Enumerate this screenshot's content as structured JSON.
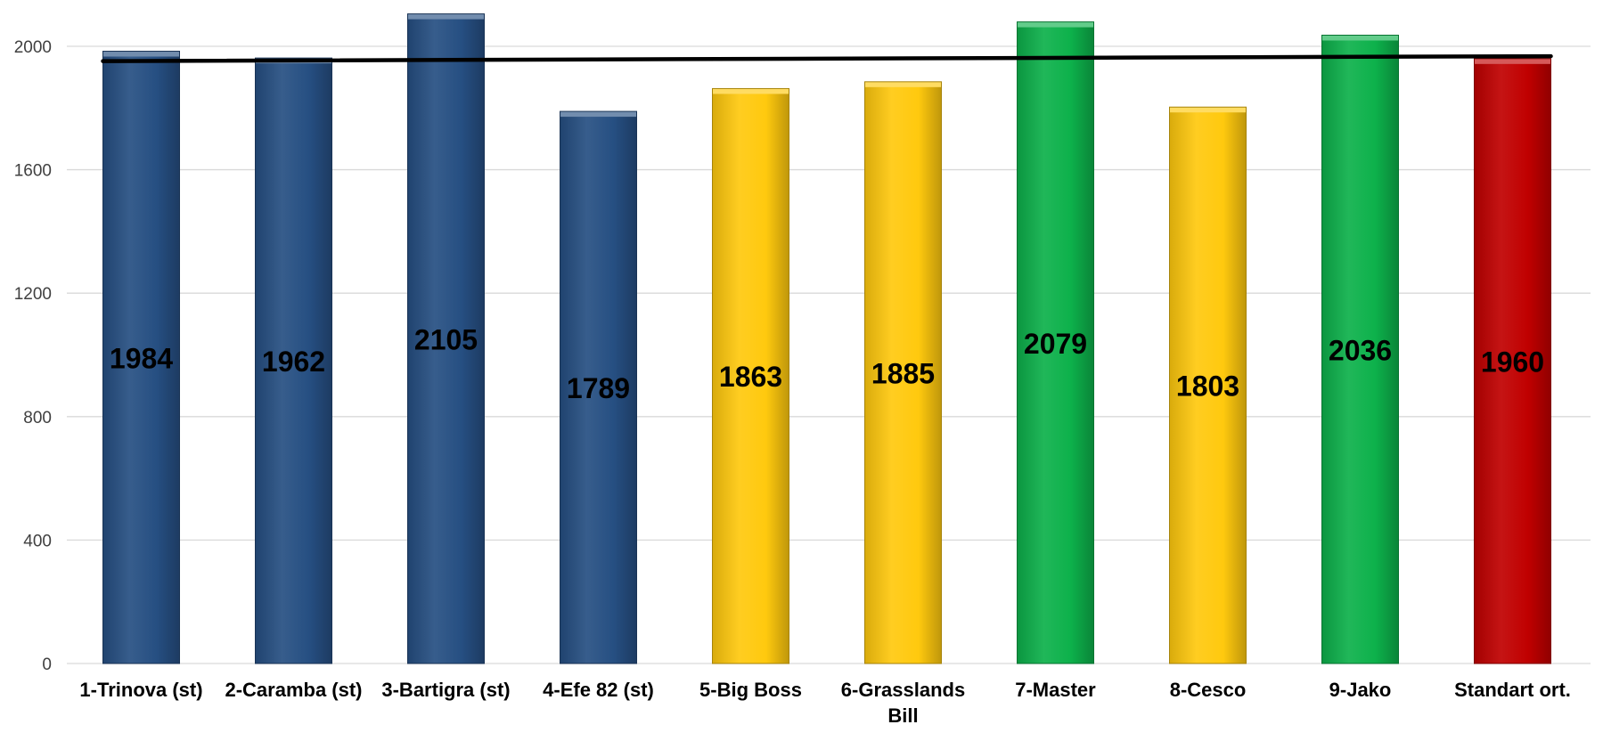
{
  "chart_data": {
    "type": "bar",
    "title": "",
    "xlabel": "",
    "ylabel": "",
    "ylim": [
      0,
      2150
    ],
    "yticks": [
      0,
      400,
      800,
      1200,
      1600,
      2000
    ],
    "grid": true,
    "legend": "none",
    "categories": [
      [
        "1-Trinova (st)"
      ],
      [
        "2-Caramba (st)"
      ],
      [
        "3-Bartigra (st)"
      ],
      [
        "4-Efe 82 (st)"
      ],
      [
        "5-Big Boss"
      ],
      [
        "6-Grasslands",
        "Bill"
      ],
      [
        "7-Master"
      ],
      [
        "8-Cesco"
      ],
      [
        "9-Jako"
      ],
      [
        "Standart ort."
      ]
    ],
    "values": [
      1984,
      1962,
      2105,
      1789,
      1863,
      1885,
      2079,
      1803,
      2036,
      1960
    ],
    "data_labels": [
      "1984",
      "1962",
      "2105",
      "1789",
      "1863",
      "1885",
      "2079",
      "1803",
      "2036",
      "1960"
    ],
    "bar_colors": [
      "#264f82",
      "#264f82",
      "#264f82",
      "#264f82",
      "#ffc90e",
      "#ffc90e",
      "#0db14b",
      "#ffc90e",
      "#0db14b",
      "#c00000"
    ],
    "trendline": {
      "type": "linear",
      "color": "#000000",
      "start": 1952,
      "end": 1968
    }
  }
}
